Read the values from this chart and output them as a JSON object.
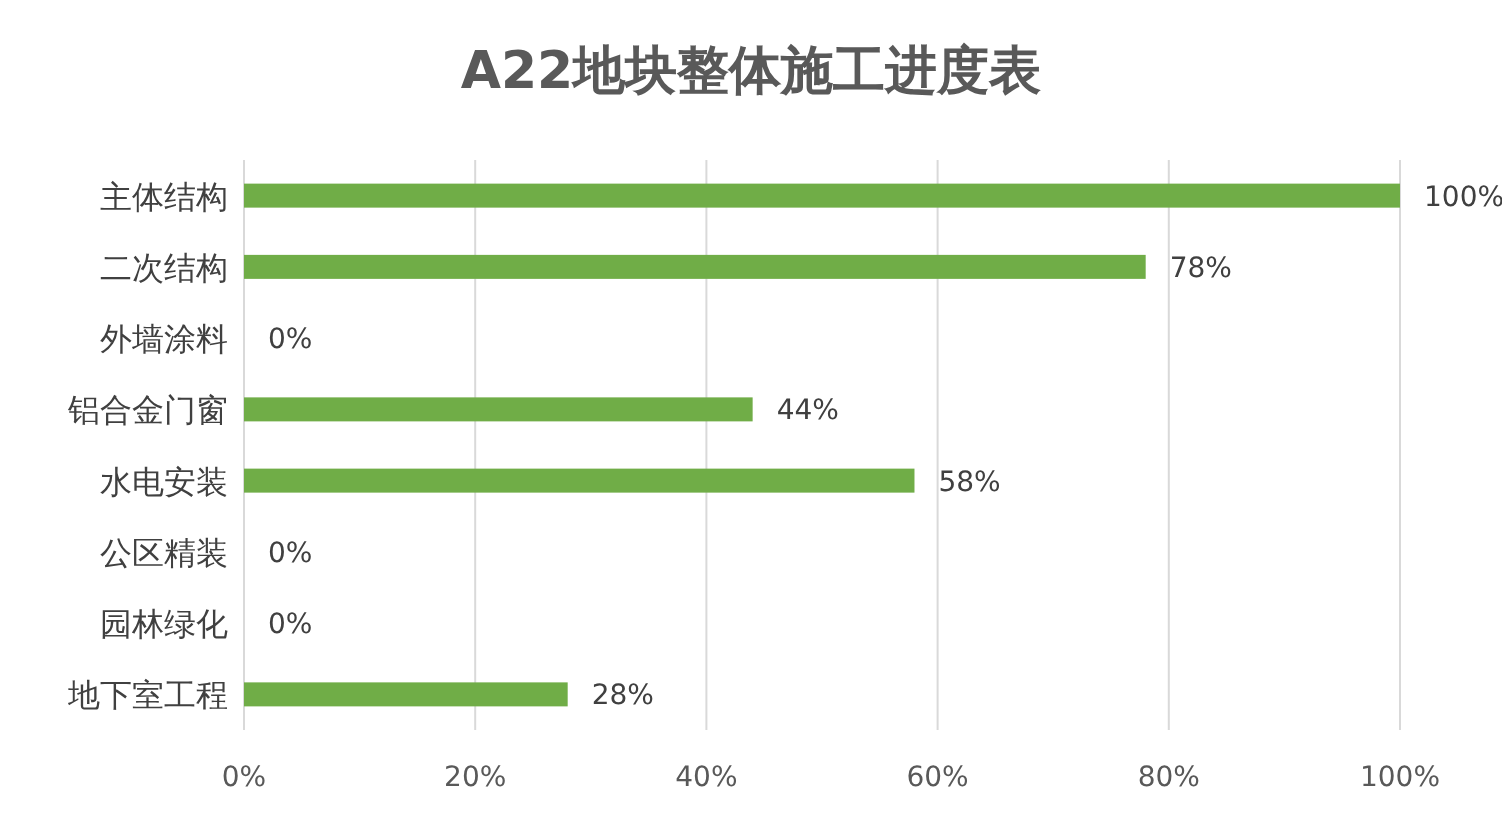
{
  "chart_data": {
    "type": "bar",
    "orientation": "horizontal",
    "title": "A22地块整体施工进度表",
    "categories": [
      "主体结构",
      "二次结构",
      "外墙涂料",
      "铝合金门窗",
      "水电安装",
      "公区精装",
      "园林绿化",
      "地下室工程"
    ],
    "values": [
      100,
      78,
      0,
      44,
      58,
      0,
      0,
      28
    ],
    "value_labels": [
      "100%",
      "78%",
      "0%",
      "44%",
      "58%",
      "0%",
      "0%",
      "28%"
    ],
    "color": "#70ad47",
    "xlim": [
      0,
      100
    ],
    "xticks": [
      {
        "value": 0,
        "label": "0%"
      },
      {
        "value": 20,
        "label": "20%"
      },
      {
        "value": 40,
        "label": "40%"
      },
      {
        "value": 60,
        "label": "60%"
      },
      {
        "value": 80,
        "label": "80%"
      },
      {
        "value": 100,
        "label": "100%"
      }
    ],
    "grid": "x"
  }
}
